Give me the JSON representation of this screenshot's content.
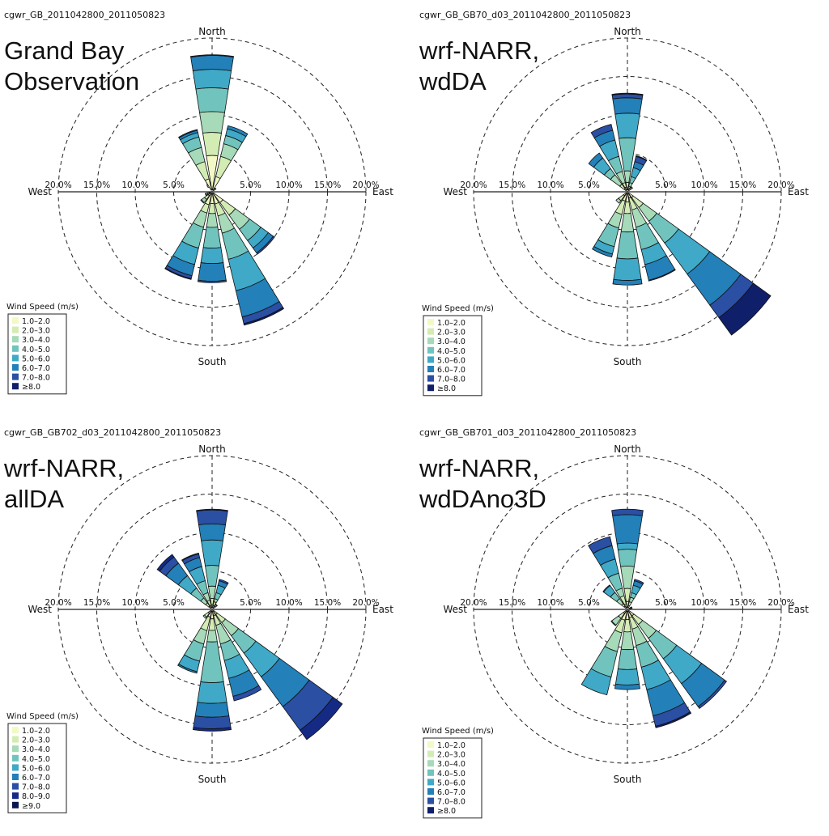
{
  "chart_data": [
    {
      "type": "wind-rose",
      "title": "cgwr_GB_2011042800_2011050823",
      "label_lines": [
        "Grand Bay",
        "Observation"
      ],
      "directions": {
        "north": "North",
        "south": "South",
        "east": "East",
        "west": "West"
      },
      "ring_labels": [
        "5.0%",
        "10.0%",
        "15.0%",
        "20.0%"
      ],
      "rmax": 20,
      "legend_title": "Wind Speed (m/s)",
      "legend": [
        "1.0–2.0",
        "2.0–3.0",
        "3.0–4.0",
        "4.0–5.0",
        "5.0–6.0",
        "6.0–7.0",
        "7.0–8.0",
        "≥8.0"
      ],
      "colors": [
        "#f3f9c5",
        "#d3ecb4",
        "#a6dab8",
        "#71c4bd",
        "#3fa9c7",
        "#2380b8",
        "#2a4fa3",
        "#101f6a"
      ],
      "sectors": [
        {
          "dir": 0,
          "cum": [
            4.5,
            7.5,
            10.2,
            13.3,
            15.7,
            17.5,
            17.6,
            17.6
          ]
        },
        {
          "dir": 22.5,
          "cum": [
            1.8,
            4.5,
            6.2,
            7.3,
            8.2,
            8.6,
            8.6,
            8.6
          ]
        },
        {
          "dir": 337.5,
          "cum": [
            1.5,
            3.8,
            5.7,
            7.1,
            7.7,
            8.0,
            8.1,
            8.1
          ]
        },
        {
          "dir": 45,
          "cum": [
            0.3,
            0.3,
            0.4,
            0.4,
            0.4,
            0.4,
            0.4,
            0.4
          ]
        },
        {
          "dir": 135,
          "cum": [
            1.5,
            3.5,
            5.8,
            7.6,
            8.8,
            9.6,
            9.8,
            9.8
          ]
        },
        {
          "dir": 157.5,
          "cum": [
            1.4,
            3.0,
            5.3,
            8.8,
            13.0,
            16.5,
            17.4,
            17.6
          ]
        },
        {
          "dir": 180,
          "cum": [
            1.3,
            2.6,
            4.4,
            7.1,
            9.1,
            11.4,
            11.6,
            11.6
          ]
        },
        {
          "dir": 202.5,
          "cum": [
            1.5,
            2.6,
            4.5,
            7.3,
            9.5,
            11.0,
            11.4,
            11.5
          ]
        },
        {
          "dir": 225,
          "cum": [
            0.4,
            1.0,
            1.5,
            1.6,
            1.6,
            1.6,
            1.6,
            1.6
          ]
        },
        {
          "dir": 247.5,
          "cum": [
            0.2,
            0.4,
            0.6,
            0.7,
            0.7,
            0.7,
            0.7,
            0.7
          ]
        }
      ]
    },
    {
      "type": "wind-rose",
      "title": "cgwr_GB_GB70_d03_2011042800_2011050823",
      "label_lines": [
        "wrf-NARR,",
        "wdDA"
      ],
      "directions": {
        "north": "North",
        "south": "South",
        "east": "East",
        "west": "West"
      },
      "ring_labels": [
        "5.0%",
        "10.0%",
        "15.0%",
        "20.0%"
      ],
      "rmax": 20,
      "legend_title": "Wind Speed (m/s)",
      "legend": [
        "1.0–2.0",
        "2.0–3.0",
        "3.0–4.0",
        "4.0–5.0",
        "5.0–6.0",
        "6.0–7.0",
        "7.0–8.0",
        "≥8.0"
      ],
      "colors": [
        "#f3f9c5",
        "#d3ecb4",
        "#a6dab8",
        "#71c4bd",
        "#3fa9c7",
        "#2380b8",
        "#2a4fa3",
        "#101f6a"
      ],
      "sectors": [
        {
          "dir": 0,
          "cum": [
            0.3,
            1.0,
            2.5,
            6.8,
            10.0,
            12.0,
            12.5,
            12.6
          ]
        },
        {
          "dir": 337.5,
          "cum": [
            0.4,
            1.0,
            2.5,
            4.5,
            6.7,
            8.0,
            8.8,
            8.8
          ]
        },
        {
          "dir": 315,
          "cum": [
            0.3,
            1.0,
            2.5,
            3.5,
            5.2,
            6.0,
            6.0,
            6.0
          ]
        },
        {
          "dir": 22.5,
          "cum": [
            0.2,
            0.5,
            1.0,
            1.8,
            3.0,
            3.8,
            4.5,
            4.6
          ]
        },
        {
          "dir": 45,
          "cum": [
            0.3,
            0.5,
            0.6,
            0.6,
            0.6,
            0.6,
            0.6,
            0.6
          ]
        },
        {
          "dir": 135,
          "cum": [
            0.7,
            2.3,
            4.5,
            8.0,
            13.0,
            18.0,
            20.0,
            22.8
          ]
        },
        {
          "dir": 157.5,
          "cum": [
            0.6,
            2.2,
            4.5,
            7.5,
            9.5,
            11.6,
            11.7,
            11.7
          ]
        },
        {
          "dir": 180,
          "cum": [
            1.1,
            2.6,
            5.0,
            8.5,
            11.3,
            11.9,
            11.9,
            11.9
          ]
        },
        {
          "dir": 202.5,
          "cum": [
            1.0,
            2.8,
            4.6,
            7.1,
            8.1,
            8.5,
            8.5,
            8.5
          ]
        },
        {
          "dir": 225,
          "cum": [
            0.4,
            1.2,
            1.6,
            1.6,
            1.6,
            1.6,
            1.6,
            1.6
          ]
        }
      ]
    },
    {
      "type": "wind-rose",
      "title": "cgwr_GB_GB702_d03_2011042800_2011050823",
      "label_lines": [
        "wrf-NARR,",
        "allDA"
      ],
      "directions": {
        "north": "North",
        "south": "South",
        "east": "East",
        "west": "West"
      },
      "ring_labels": [
        "5.0%",
        "10.0%",
        "15.0%",
        "20.0%"
      ],
      "rmax": 20,
      "legend_title": "Wind Speed (m/s)",
      "legend": [
        "1.0–2.0",
        "2.0–3.0",
        "3.0–4.0",
        "4.0–5.0",
        "5.0–6.0",
        "6.0–7.0",
        "7.0–8.0",
        "8.0–9.0",
        "≥9.0"
      ],
      "colors": [
        "#f3f9c5",
        "#d3ecb4",
        "#a6dab8",
        "#71c4bd",
        "#3fa9c7",
        "#2380b8",
        "#2a4fa3",
        "#142a85",
        "#0a1650"
      ],
      "sectors": [
        {
          "dir": 0,
          "cum": [
            0.4,
            1.2,
            2.8,
            5.5,
            8.8,
            10.9,
            12.7,
            12.8,
            12.8
          ]
        },
        {
          "dir": 337.5,
          "cum": [
            0.3,
            1.0,
            2.0,
            3.6,
            5.5,
            6.7,
            7.2,
            7.3,
            7.3
          ]
        },
        {
          "dir": 315,
          "cum": [
            0.3,
            0.8,
            1.6,
            3.2,
            5.2,
            7.2,
            8.2,
            8.6,
            8.6
          ]
        },
        {
          "dir": 22.5,
          "cum": [
            0.3,
            0.8,
            1.2,
            2.0,
            3.0,
            3.6,
            3.8,
            3.8,
            3.8
          ]
        },
        {
          "dir": 45,
          "cum": [
            0.3,
            0.5,
            0.6,
            0.6,
            0.6,
            0.6,
            0.6,
            0.6,
            0.6
          ]
        },
        {
          "dir": 135,
          "cum": [
            0.6,
            1.9,
            4.0,
            6.8,
            10.6,
            15.4,
            19.2,
            20.7,
            20.7
          ]
        },
        {
          "dir": 157.5,
          "cum": [
            0.6,
            1.9,
            4.4,
            6.6,
            9.0,
            11.4,
            12.0,
            12.0,
            12.0
          ]
        },
        {
          "dir": 180,
          "cum": [
            1.0,
            2.5,
            4.0,
            9.3,
            12.0,
            13.8,
            15.3,
            15.6,
            15.6
          ]
        },
        {
          "dir": 202.5,
          "cum": [
            0.8,
            2.6,
            4.4,
            6.7,
            8.1,
            8.3,
            8.3,
            8.3,
            8.3
          ]
        },
        {
          "dir": 225,
          "cum": [
            0.4,
            1.0,
            1.2,
            1.2,
            1.2,
            1.2,
            1.2,
            1.2,
            1.2
          ]
        }
      ]
    },
    {
      "type": "wind-rose",
      "title": "cgwr_GB_GB701_d03_2011042800_2011050823",
      "label_lines": [
        "wrf-NARR,",
        "wdDAno3D"
      ],
      "directions": {
        "north": "North",
        "south": "South",
        "east": "East",
        "west": "West"
      },
      "ring_labels": [
        "5.0%",
        "10.0%",
        "15.0%",
        "20.0%"
      ],
      "rmax": 20,
      "legend_title": "Wind Speed (m/s)",
      "legend": [
        "1.0–2.0",
        "2.0–3.0",
        "3.0–4.0",
        "4.0–5.0",
        "5.0–6.0",
        "6.0–7.0",
        "7.0–8.0",
        "≥8.0"
      ],
      "colors": [
        "#f3f9c5",
        "#d3ecb4",
        "#a6dab8",
        "#71c4bd",
        "#3fa9c7",
        "#2380b8",
        "#2a4fa3",
        "#101f6a"
      ],
      "sectors": [
        {
          "dir": 0,
          "cum": [
            0.8,
            2.5,
            5.4,
            7.6,
            8.4,
            12.1,
            12.8,
            12.8
          ]
        },
        {
          "dir": 337.5,
          "cum": [
            0.5,
            1.6,
            2.6,
            4.6,
            6.5,
            8.3,
            9.5,
            9.5
          ]
        },
        {
          "dir": 315,
          "cum": [
            0.3,
            0.7,
            1.5,
            2.5,
            3.6,
            3.7,
            3.7,
            3.7
          ]
        },
        {
          "dir": 22.5,
          "cum": [
            0.3,
            0.8,
            1.4,
            2.0,
            3.0,
            3.6,
            3.8,
            3.8
          ]
        },
        {
          "dir": 67.5,
          "cum": [
            0.2,
            0.3,
            0.4,
            0.4,
            0.4,
            0.4,
            0.4,
            0.4
          ]
        },
        {
          "dir": 135,
          "cum": [
            0.8,
            2.2,
            4.4,
            7.7,
            11.7,
            15.4,
            15.7,
            15.7
          ]
        },
        {
          "dir": 157.5,
          "cum": [
            0.9,
            2.4,
            4.6,
            7.5,
            10.5,
            14.0,
            15.4,
            15.6
          ]
        },
        {
          "dir": 180,
          "cum": [
            1.1,
            2.7,
            5.0,
            7.6,
            9.6,
            10.2,
            10.2,
            10.2
          ]
        },
        {
          "dir": 202.5,
          "cum": [
            1.2,
            2.9,
            5.4,
            8.8,
            11.2,
            11.2,
            11.2,
            11.2
          ]
        },
        {
          "dir": 225,
          "cum": [
            0.4,
            1.2,
            2.3,
            2.4,
            2.4,
            2.4,
            2.4,
            2.4
          ]
        }
      ]
    }
  ]
}
